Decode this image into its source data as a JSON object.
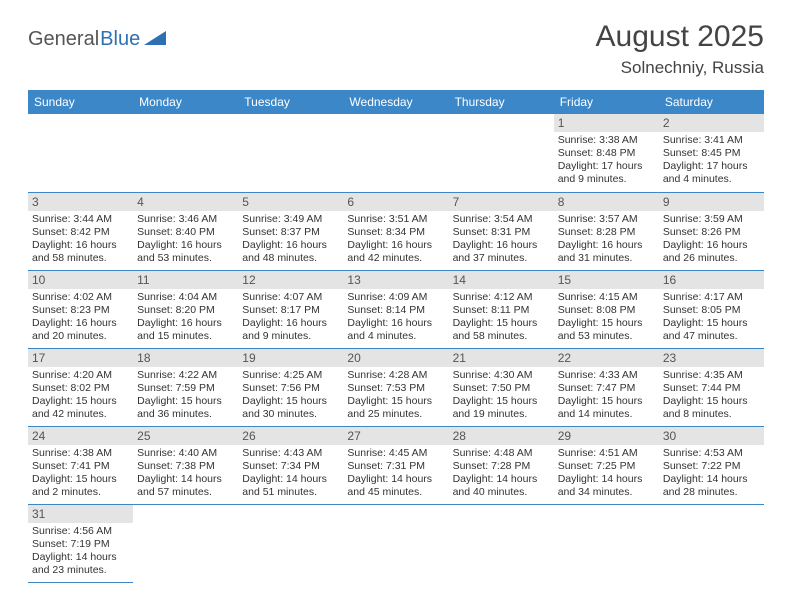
{
  "brand": {
    "part1": "General",
    "part2": "Blue",
    "color1": "#555555",
    "color2": "#2f6fb3"
  },
  "title": "August 2025",
  "location": "Solnechniy, Russia",
  "colors": {
    "header_bg": "#3b87c8",
    "header_fg": "#ffffff",
    "daynum_bg": "#e4e4e4",
    "daynum_fg": "#555555",
    "border": "#3b87c8",
    "page_bg": "#ffffff",
    "text": "#333333"
  },
  "typography": {
    "title_fontsize": 30,
    "location_fontsize": 17,
    "header_fontsize": 12,
    "daynum_fontsize": 12,
    "info_fontsize": 10.5,
    "font_family": "Arial"
  },
  "columns": [
    "Sunday",
    "Monday",
    "Tuesday",
    "Wednesday",
    "Thursday",
    "Friday",
    "Saturday"
  ],
  "weeks": [
    [
      null,
      null,
      null,
      null,
      null,
      {
        "day": "1",
        "sunrise": "3:38 AM",
        "sunset": "8:48 PM",
        "daylight": "17 hours and 9 minutes."
      },
      {
        "day": "2",
        "sunrise": "3:41 AM",
        "sunset": "8:45 PM",
        "daylight": "17 hours and 4 minutes."
      }
    ],
    [
      {
        "day": "3",
        "sunrise": "3:44 AM",
        "sunset": "8:42 PM",
        "daylight": "16 hours and 58 minutes."
      },
      {
        "day": "4",
        "sunrise": "3:46 AM",
        "sunset": "8:40 PM",
        "daylight": "16 hours and 53 minutes."
      },
      {
        "day": "5",
        "sunrise": "3:49 AM",
        "sunset": "8:37 PM",
        "daylight": "16 hours and 48 minutes."
      },
      {
        "day": "6",
        "sunrise": "3:51 AM",
        "sunset": "8:34 PM",
        "daylight": "16 hours and 42 minutes."
      },
      {
        "day": "7",
        "sunrise": "3:54 AM",
        "sunset": "8:31 PM",
        "daylight": "16 hours and 37 minutes."
      },
      {
        "day": "8",
        "sunrise": "3:57 AM",
        "sunset": "8:28 PM",
        "daylight": "16 hours and 31 minutes."
      },
      {
        "day": "9",
        "sunrise": "3:59 AM",
        "sunset": "8:26 PM",
        "daylight": "16 hours and 26 minutes."
      }
    ],
    [
      {
        "day": "10",
        "sunrise": "4:02 AM",
        "sunset": "8:23 PM",
        "daylight": "16 hours and 20 minutes."
      },
      {
        "day": "11",
        "sunrise": "4:04 AM",
        "sunset": "8:20 PM",
        "daylight": "16 hours and 15 minutes."
      },
      {
        "day": "12",
        "sunrise": "4:07 AM",
        "sunset": "8:17 PM",
        "daylight": "16 hours and 9 minutes."
      },
      {
        "day": "13",
        "sunrise": "4:09 AM",
        "sunset": "8:14 PM",
        "daylight": "16 hours and 4 minutes."
      },
      {
        "day": "14",
        "sunrise": "4:12 AM",
        "sunset": "8:11 PM",
        "daylight": "15 hours and 58 minutes."
      },
      {
        "day": "15",
        "sunrise": "4:15 AM",
        "sunset": "8:08 PM",
        "daylight": "15 hours and 53 minutes."
      },
      {
        "day": "16",
        "sunrise": "4:17 AM",
        "sunset": "8:05 PM",
        "daylight": "15 hours and 47 minutes."
      }
    ],
    [
      {
        "day": "17",
        "sunrise": "4:20 AM",
        "sunset": "8:02 PM",
        "daylight": "15 hours and 42 minutes."
      },
      {
        "day": "18",
        "sunrise": "4:22 AM",
        "sunset": "7:59 PM",
        "daylight": "15 hours and 36 minutes."
      },
      {
        "day": "19",
        "sunrise": "4:25 AM",
        "sunset": "7:56 PM",
        "daylight": "15 hours and 30 minutes."
      },
      {
        "day": "20",
        "sunrise": "4:28 AM",
        "sunset": "7:53 PM",
        "daylight": "15 hours and 25 minutes."
      },
      {
        "day": "21",
        "sunrise": "4:30 AM",
        "sunset": "7:50 PM",
        "daylight": "15 hours and 19 minutes."
      },
      {
        "day": "22",
        "sunrise": "4:33 AM",
        "sunset": "7:47 PM",
        "daylight": "15 hours and 14 minutes."
      },
      {
        "day": "23",
        "sunrise": "4:35 AM",
        "sunset": "7:44 PM",
        "daylight": "15 hours and 8 minutes."
      }
    ],
    [
      {
        "day": "24",
        "sunrise": "4:38 AM",
        "sunset": "7:41 PM",
        "daylight": "15 hours and 2 minutes."
      },
      {
        "day": "25",
        "sunrise": "4:40 AM",
        "sunset": "7:38 PM",
        "daylight": "14 hours and 57 minutes."
      },
      {
        "day": "26",
        "sunrise": "4:43 AM",
        "sunset": "7:34 PM",
        "daylight": "14 hours and 51 minutes."
      },
      {
        "day": "27",
        "sunrise": "4:45 AM",
        "sunset": "7:31 PM",
        "daylight": "14 hours and 45 minutes."
      },
      {
        "day": "28",
        "sunrise": "4:48 AM",
        "sunset": "7:28 PM",
        "daylight": "14 hours and 40 minutes."
      },
      {
        "day": "29",
        "sunrise": "4:51 AM",
        "sunset": "7:25 PM",
        "daylight": "14 hours and 34 minutes."
      },
      {
        "day": "30",
        "sunrise": "4:53 AM",
        "sunset": "7:22 PM",
        "daylight": "14 hours and 28 minutes."
      }
    ],
    [
      {
        "day": "31",
        "sunrise": "4:56 AM",
        "sunset": "7:19 PM",
        "daylight": "14 hours and 23 minutes."
      },
      null,
      null,
      null,
      null,
      null,
      null
    ]
  ],
  "labels": {
    "sunrise": "Sunrise: ",
    "sunset": "Sunset: ",
    "daylight": "Daylight: "
  }
}
